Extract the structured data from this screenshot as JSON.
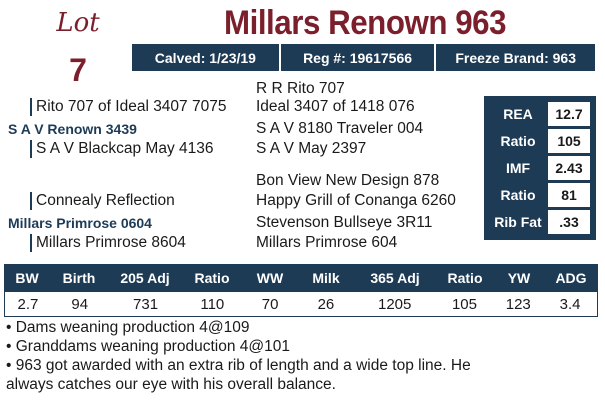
{
  "lot": {
    "word": "Lot",
    "number": "7"
  },
  "title": "Millars Renown 963",
  "info_bar": {
    "calved": "Calved: 1/23/19",
    "reg": "Reg #: 19617566",
    "freeze": "Freeze Brand: 963"
  },
  "pedigree": {
    "sire_sire_sire": "R R Rito 707",
    "sire_sire": "Rito 707 of Ideal 3407 7075",
    "sire_sire_dam": "Ideal 3407 of 1418 076",
    "sire": "S A V Renown 3439",
    "sire_dam_sire": "S A V 8180 Traveler 004",
    "sire_dam": "S A V Blackcap May 4136",
    "sire_dam_dam": "S A V May 2397",
    "dam_sire_sire": "Bon View New Design 878",
    "dam_sire": "Connealy Reflection",
    "dam_sire_dam": "Happy Grill of Conanga 6260",
    "dam": "Millars Primrose 0604",
    "dam_dam_sire": "Stevenson Bullseye 3R11",
    "dam_dam": "Millars Primrose 8604",
    "dam_dam_dam": "Millars Primrose 604"
  },
  "epd": [
    {
      "label": "REA",
      "value": "12.7"
    },
    {
      "label": "Ratio",
      "value": "105"
    },
    {
      "label": "IMF",
      "value": "2.43"
    },
    {
      "label": "Ratio",
      "value": "81"
    },
    {
      "label": "Rib Fat",
      "value": ".33"
    }
  ],
  "performance": {
    "headers": [
      "BW",
      "Birth",
      "205 Adj",
      "Ratio",
      "WW",
      "Milk",
      "365 Adj",
      "Ratio",
      "YW",
      "ADG"
    ],
    "values": [
      "2.7",
      "94",
      "731",
      "110",
      "70",
      "26",
      "1205",
      "105",
      "123",
      "3.4"
    ]
  },
  "notes": [
    "• Dams weaning production 4@109",
    "• Granddams weaning production 4@101",
    "• 963 got awarded with an extra rib of length and a wide top line. He",
    "always catches our eye with his overall balance."
  ]
}
